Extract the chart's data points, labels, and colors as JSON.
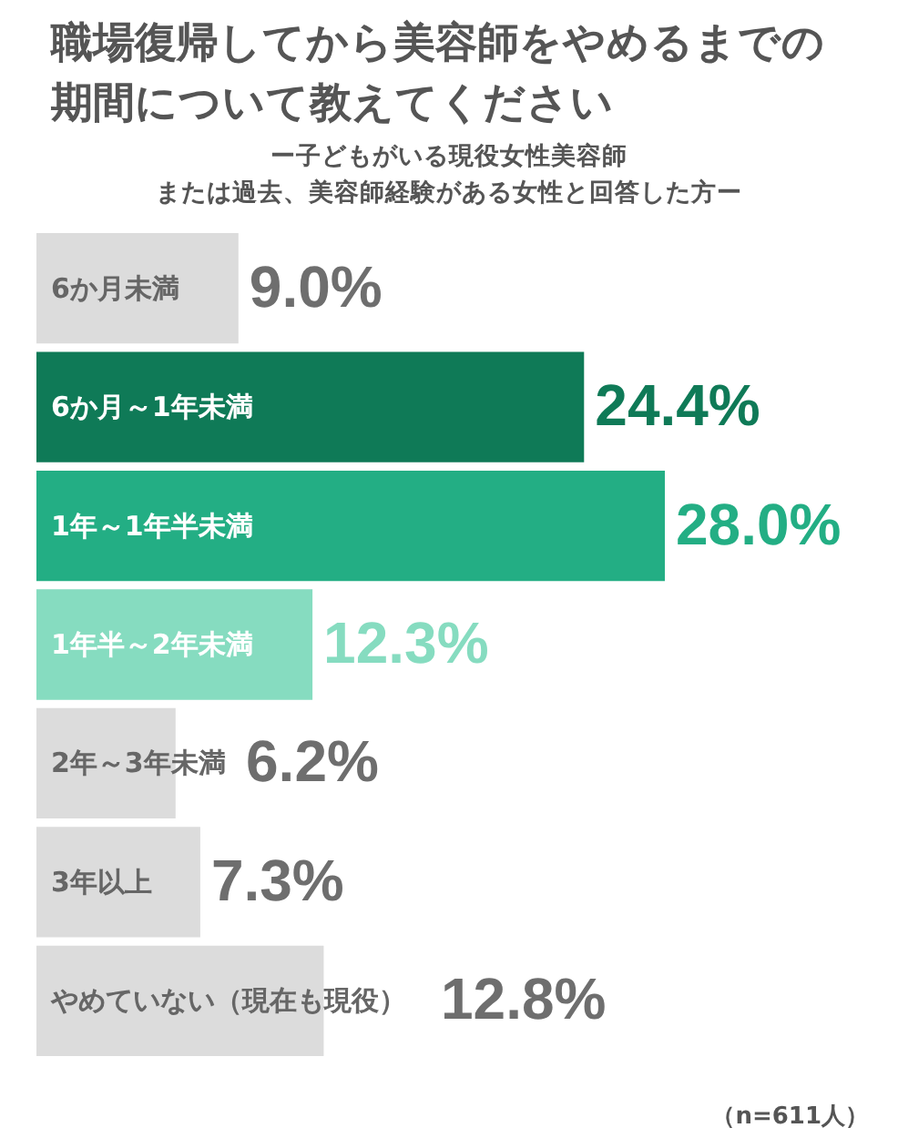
{
  "chart_data": {
    "type": "bar",
    "orientation": "horizontal",
    "title": "職場復帰してから美容師をやめるまでの期間について教えてください",
    "subtitle": "ー子どもがいる現役女性美容師",
    "categories": [
      "6か月未満",
      "6か月～1年未満",
      "1年～1年半未満",
      "1年半～2年未満",
      "2年～3年未満",
      "3年以上",
      "やめていない（現在も現役）"
    ],
    "values": [
      9.0,
      24.4,
      28.0,
      12.3,
      6.2,
      7.3,
      12.8
    ],
    "colors": [
      "#dcdcdc",
      "#0f7a57",
      "#23ae84",
      "#86dcc0",
      "#dcdcdc",
      "#dcdcdc",
      "#dcdcdc"
    ],
    "value_labels": [
      "9.0%",
      "24.4%",
      "28.0%",
      "12.3%",
      "6.2%",
      "7.3%",
      "12.8%"
    ],
    "annotations": [
      "または過去、美容師経験がある女性と回答した方ー",
      "（n=611人）"
    ]
  }
}
